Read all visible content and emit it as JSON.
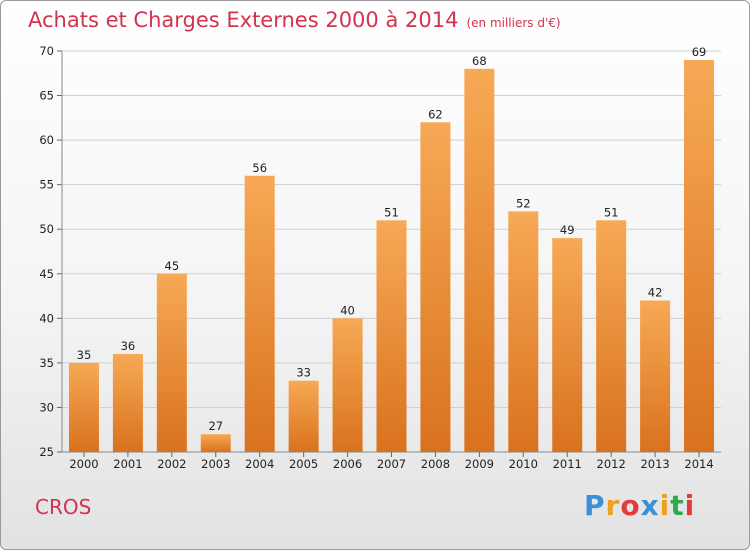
{
  "header": {
    "title": "Achats et Charges Externes 2000 à 2014",
    "unit": "(en milliers d'€)"
  },
  "footer": {
    "place": "CROS",
    "logo_text": "Proxiti"
  },
  "colors": {
    "title": "#d2334e",
    "bar_top": "#f7a955",
    "bar_bottom": "#d9721e",
    "grid": "#d0d0d0"
  },
  "chart_data": {
    "type": "bar",
    "title": "Achats et Charges Externes 2000 à 2014",
    "subtitle": "(en milliers d'€)",
    "categories": [
      "2000",
      "2001",
      "2002",
      "2003",
      "2004",
      "2005",
      "2006",
      "2007",
      "2008",
      "2009",
      "2010",
      "2011",
      "2012",
      "2013",
      "2014"
    ],
    "values": [
      35,
      36,
      45,
      27,
      56,
      33,
      40,
      51,
      62,
      68,
      52,
      49,
      51,
      42,
      69
    ],
    "ylim": [
      25,
      70
    ],
    "yticks": [
      25,
      30,
      35,
      40,
      45,
      50,
      55,
      60,
      65,
      70
    ],
    "grid": true,
    "data_labels": true,
    "legend": "none"
  }
}
